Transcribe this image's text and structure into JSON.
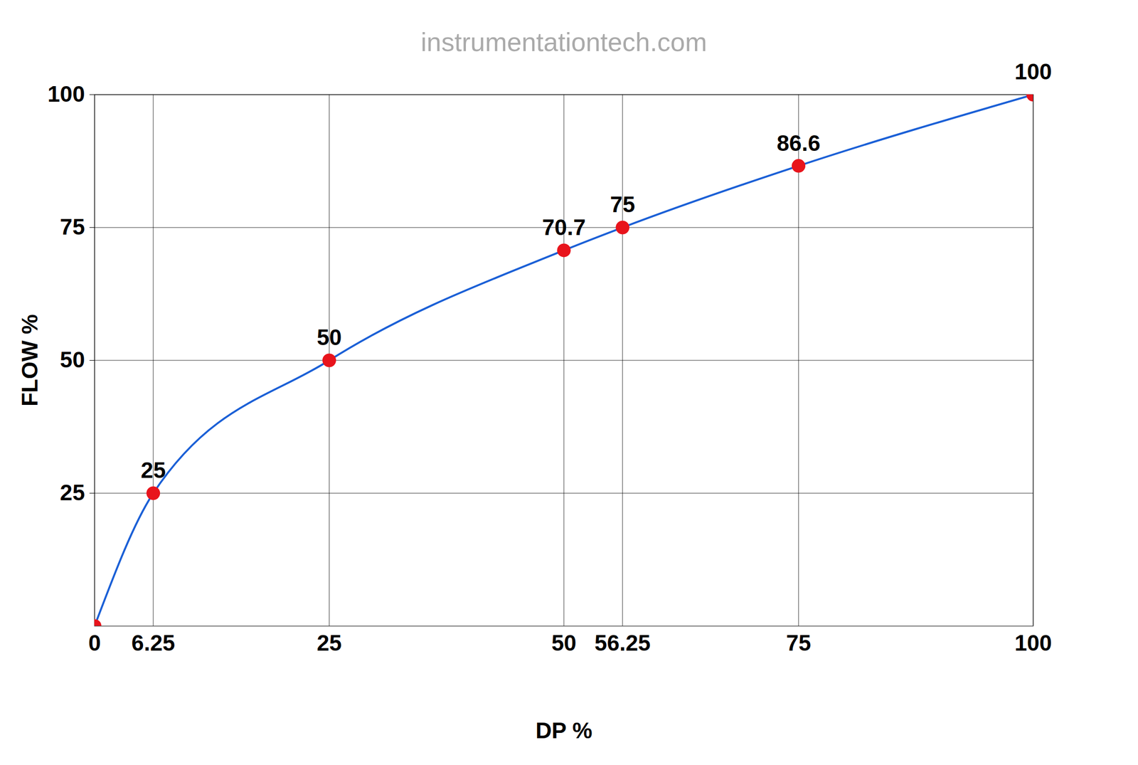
{
  "chart_data": {
    "type": "line",
    "title": "instrumentationtech.com",
    "x_label": "DP %",
    "y_label": "FLOW %",
    "x": [
      0,
      6.25,
      25,
      50,
      56.25,
      75,
      100
    ],
    "values": [
      0,
      25,
      50,
      70.7,
      75,
      86.6,
      100
    ],
    "value_labels": [
      null,
      "25",
      "50",
      "70.7",
      "75",
      "86.6",
      "100"
    ],
    "color": "#1a5fd6",
    "marker": "circle",
    "marker_color": "#e8141c",
    "data_labels": true,
    "xlim": [
      0,
      100
    ],
    "xticks": [
      0,
      6.25,
      25,
      50,
      56.25,
      75,
      100
    ],
    "ylim": [
      0,
      100
    ],
    "yticks": [
      25,
      50,
      75,
      100
    ],
    "grid": true
  }
}
